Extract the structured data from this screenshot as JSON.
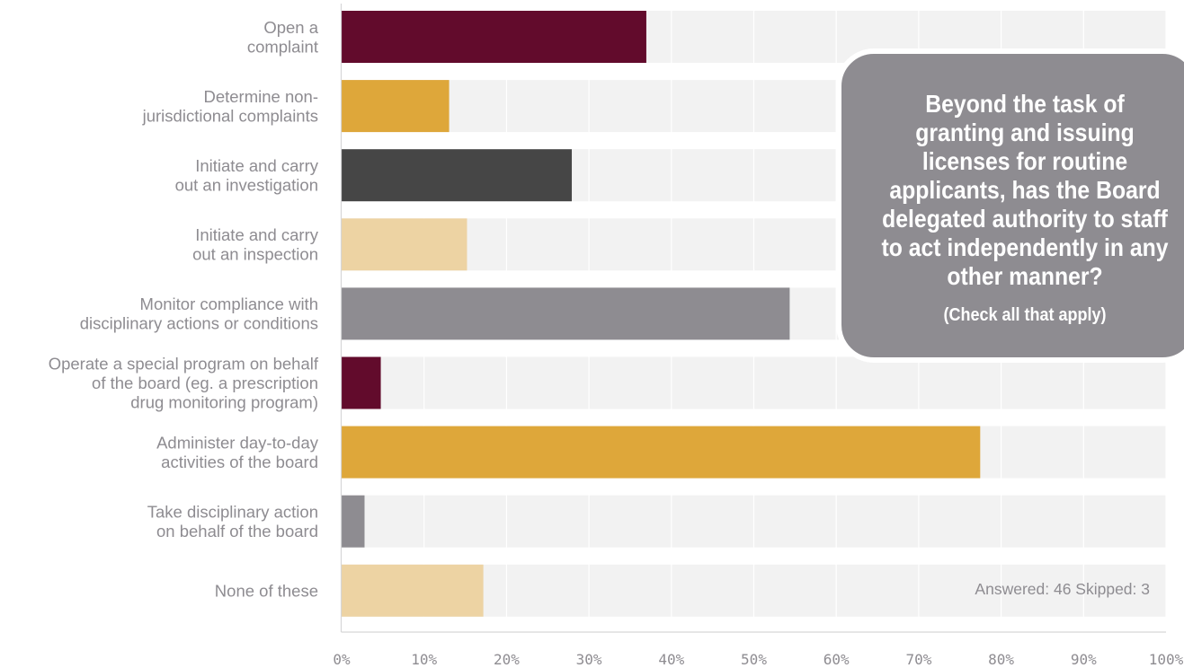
{
  "chart_data": {
    "type": "bar",
    "orientation": "horizontal",
    "categories": [
      "Open a\ncomplaint",
      "Determine non-\njurisdictional complaints",
      "Initiate and carry\nout an investigation",
      "Initiate and carry\nout an inspection",
      "Monitor compliance with\ndisciplinary actions or conditions",
      "Operate a special program on behalf\nof the board (eg. a prescription\ndrug monitoring program)",
      "Administer day-to-day\nactivities of the board",
      "Take disciplinary action\non behalf of the board",
      "None of these"
    ],
    "values": [
      36.96,
      13.04,
      27.92,
      15.21,
      54.35,
      4.75,
      77.46,
      2.78,
      17.19
    ],
    "bar_colors": [
      "#620b2c",
      "#dea73a",
      "#464646",
      "#edd3a3",
      "#8e8c91",
      "#620b2c",
      "#dea73a",
      "#8e8c91",
      "#edd3a3"
    ],
    "track_color": "#f2f2f2",
    "xlim": [
      0,
      100
    ],
    "x_ticks": [
      "0%",
      "10%",
      "20%",
      "30%",
      "40%",
      "50%",
      "60%",
      "70%",
      "80%",
      "90%",
      "100%"
    ],
    "grid": true,
    "title": "",
    "xlabel": "",
    "ylabel": ""
  },
  "callout": {
    "title": "Beyond the task of granting and issuing licenses for routine applicants, has the Board delegated authority to staff to act independently in any other manner?",
    "subtitle": "(Check all that apply)"
  },
  "footer": {
    "answered_text": "Answered: 46  Skipped: 3"
  }
}
